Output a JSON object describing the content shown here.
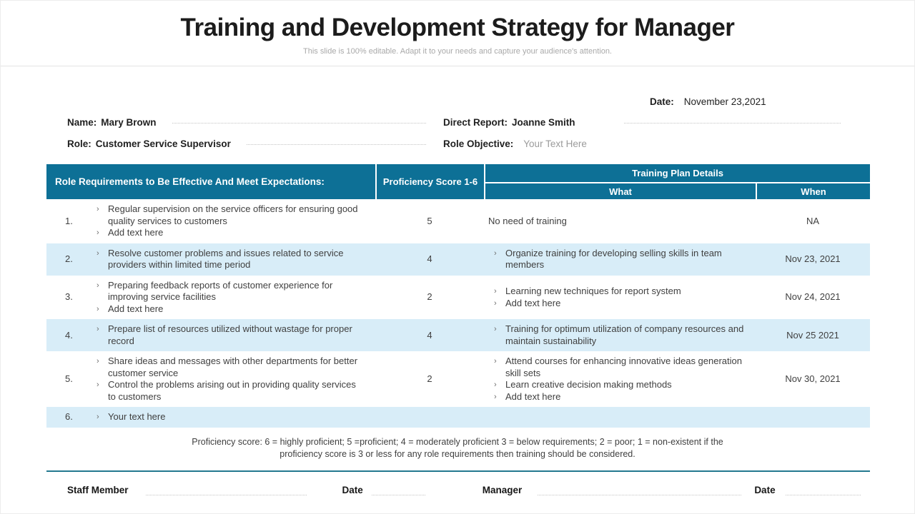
{
  "header": {
    "title": "Training and Development Strategy for Manager",
    "subtitle": "This slide is 100% editable. Adapt it to your needs and capture your audience's attention."
  },
  "info": {
    "date_label": "Date:",
    "date_value": "November 23,2021",
    "name_label": "Name:",
    "name_value": "Mary Brown",
    "role_label": "Role:",
    "role_value": "Customer Service Supervisor",
    "direct_report_label": "Direct Report:",
    "direct_report_value": "Joanne Smith",
    "role_objective_label": "Role Objective:",
    "role_objective_placeholder": "Your Text Here"
  },
  "table": {
    "headers": {
      "role_requirements": "Role Requirements to Be Effective And Meet Expectations:",
      "proficiency_score": "Proficiency Score 1-6",
      "training_plan": "Training Plan Details",
      "what": "What",
      "when": "When"
    },
    "rows": [
      {
        "num": "1.",
        "requirements": [
          "Regular supervision on the service officers for ensuring good quality services to customers",
          "Add text here"
        ],
        "score": "5",
        "what_plain": "No need of training",
        "when": "NA"
      },
      {
        "num": "2.",
        "requirements": [
          "Resolve customer problems and issues related to service providers within limited time period"
        ],
        "score": "4",
        "what_items": [
          "Organize training for developing selling skills in team members"
        ],
        "when": "Nov 23, 2021"
      },
      {
        "num": "3.",
        "requirements": [
          "Preparing feedback reports of customer experience for improving service facilities",
          "Add text here"
        ],
        "score": "2",
        "what_items": [
          "Learning new techniques for report system",
          "Add text here"
        ],
        "when": "Nov 24, 2021"
      },
      {
        "num": "4.",
        "requirements": [
          "Prepare list of resources utilized without wastage for proper record"
        ],
        "score": "4",
        "what_items": [
          "Training for optimum utilization of company resources and maintain sustainability"
        ],
        "when": "Nov 25 2021"
      },
      {
        "num": "5.",
        "requirements": [
          "Share ideas and messages with other departments for better customer service",
          "Control the problems arising out in providing quality services to customers"
        ],
        "score": "2",
        "what_items": [
          "Attend courses for enhancing innovative ideas generation skill sets",
          "Learn creative decision making methods",
          "Add text here"
        ],
        "when": "Nov 30, 2021"
      },
      {
        "num": "6.",
        "requirements": [
          "Your text here"
        ],
        "score": "",
        "what_items": [],
        "when": ""
      }
    ],
    "note": "Proficiency score: 6 = highly proficient; 5 =proficient; 4 = moderately proficient 3 = below requirements; 2 = poor; 1 = non-existent if the proficiency score is 3 or less for any role requirements then training should be considered."
  },
  "signature": {
    "staff_member_label": "Staff Member",
    "date1_label": "Date",
    "manager_label": "Manager",
    "date2_label": "Date"
  },
  "colors": {
    "header_teal": "#0d7096",
    "row_alt_blue": "#d8edf8",
    "divider_teal": "#23788f"
  },
  "bullet_glyph": "›"
}
